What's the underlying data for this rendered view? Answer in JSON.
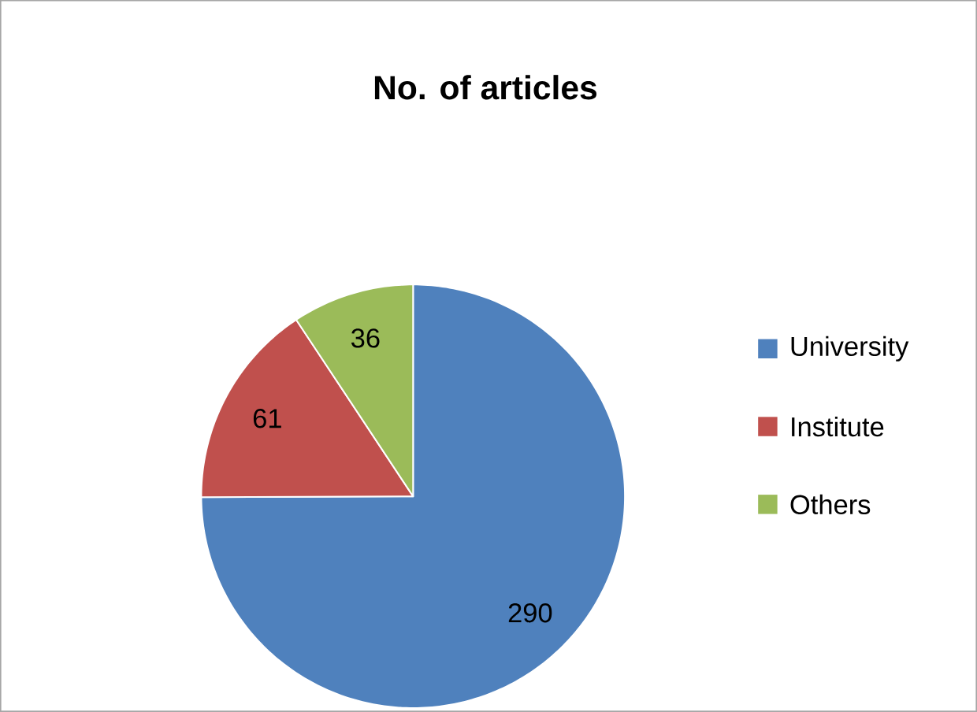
{
  "chart_data": {
    "type": "pie",
    "title": "No. of articles",
    "categories": [
      "University",
      "Institute",
      "Others"
    ],
    "values": [
      290,
      61,
      36
    ],
    "colors": [
      "#4f81bd",
      "#c0504d",
      "#9bbb59"
    ],
    "data_labels": true,
    "legend": "right"
  }
}
